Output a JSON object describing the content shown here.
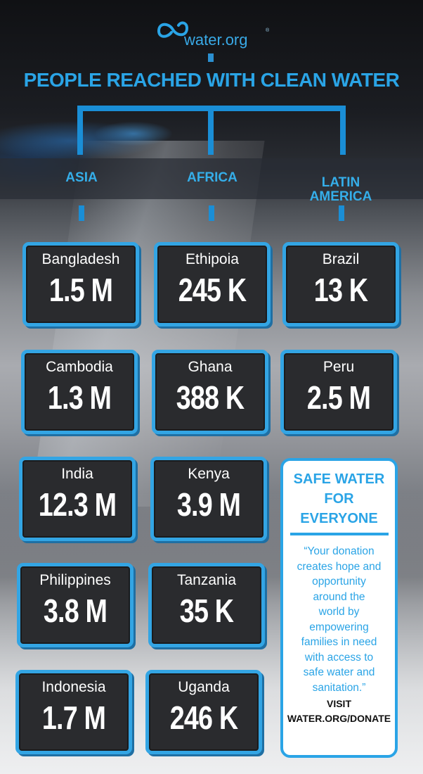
{
  "brand": {
    "logo_text": "water.org",
    "registered": "®",
    "accent": "#2aa4e6"
  },
  "headline": "PEOPLE REACHED WITH CLEAN WATER",
  "regions": [
    "ASIA",
    "AFRICA",
    "LATIN AMERICA"
  ],
  "columns": {
    "asia": [
      {
        "country": "Bangladesh",
        "value": "1.5 M"
      },
      {
        "country": "Cambodia",
        "value": "1.3 M"
      },
      {
        "country": "India",
        "value": "12.3 M"
      },
      {
        "country": "Philippines",
        "value": "3.8 M"
      },
      {
        "country": "Indonesia",
        "value": "1.7 M"
      }
    ],
    "africa": [
      {
        "country": "Ethipoia",
        "value": "245 K"
      },
      {
        "country": "Ghana",
        "value": "388 K"
      },
      {
        "country": "Kenya",
        "value": "3.9 M"
      },
      {
        "country": "Tanzania",
        "value": "35 K"
      },
      {
        "country": "Uganda",
        "value": "246 K"
      }
    ],
    "latin_america": [
      {
        "country": "Brazil",
        "value": "13 K"
      },
      {
        "country": "Peru",
        "value": "2.5 M"
      }
    ]
  },
  "callout": {
    "title_lines": [
      "SAFE WATER",
      "FOR",
      "EVERYONE"
    ],
    "quote_lines": [
      "“Your donation",
      "creates hope and",
      "opportunity",
      "around the",
      "world by",
      "empowering",
      "families in need",
      "with access to",
      "safe water and",
      "sanitation.”"
    ],
    "cta_lines": [
      "VISIT",
      "WATER.ORG/DONATE"
    ]
  }
}
